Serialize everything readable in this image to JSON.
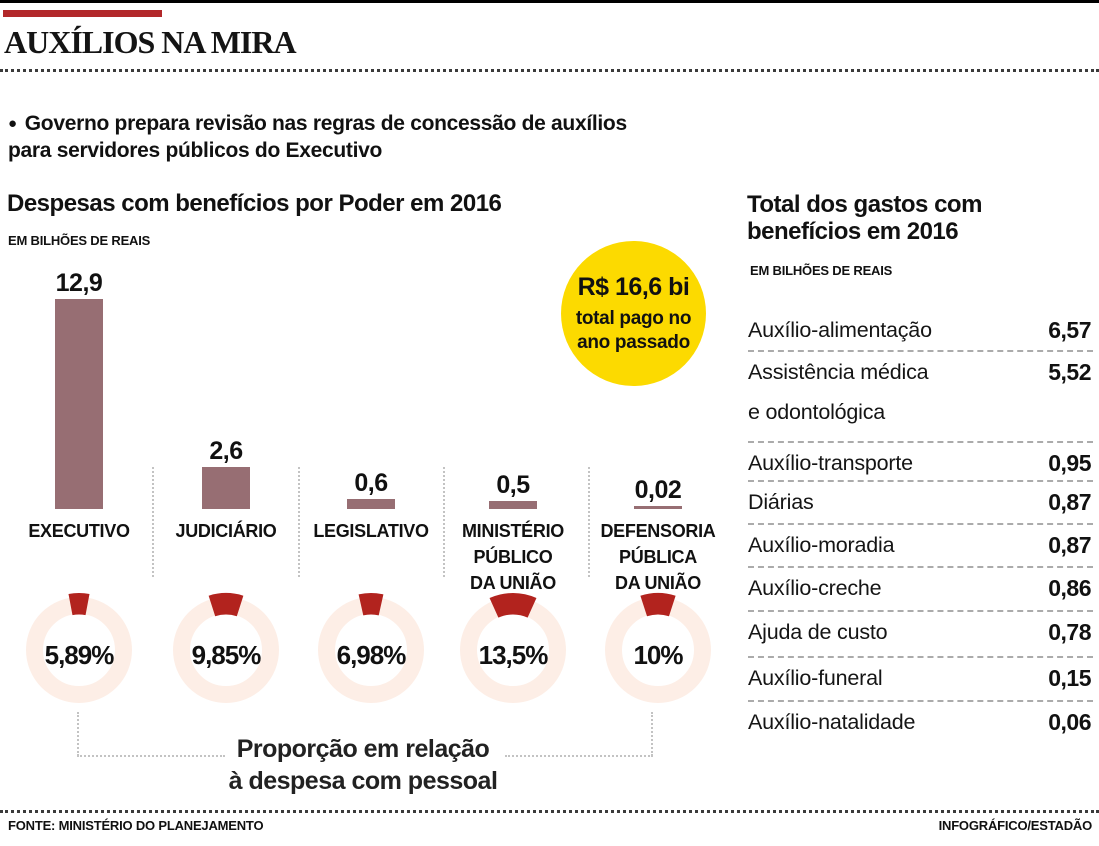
{
  "page": {
    "title": "AUXÍLIOS NA MIRA",
    "intro": {
      "bullet": "●",
      "line1": "Governo prepara revisão nas regras de concessão de auxílios",
      "line2": "para servidores públicos do Executivo"
    }
  },
  "colors": {
    "accent_red": "#b2282a",
    "bar_mauve": "#976e73",
    "wedge_red": "#b2231e",
    "ring_pink": "#fdeee6",
    "circle_yellow": "#fcda00"
  },
  "bar_chart": {
    "title": "Despesas com benefícios por Poder em 2016",
    "unit": "EM BILHÕES DE REAIS",
    "bars": [
      {
        "label_lines": [
          "EXECUTIVO"
        ],
        "value": 12.9,
        "value_label": "12,9"
      },
      {
        "label_lines": [
          "JUDICIÁRIO"
        ],
        "value": 2.6,
        "value_label": "2,6"
      },
      {
        "label_lines": [
          "LEGISLATIVO"
        ],
        "value": 0.6,
        "value_label": "0,6"
      },
      {
        "label_lines": [
          "MINISTÉRIO",
          "PÚBLICO",
          "DA UNIÃO"
        ],
        "value": 0.5,
        "value_label": "0,5"
      },
      {
        "label_lines": [
          "DEFENSORIA",
          "PÚBLICA",
          "DA UNIÃO"
        ],
        "value": 0.02,
        "value_label": "0,02"
      }
    ],
    "badge": {
      "value": "R$ 16,6 bi",
      "line1": "total pago no",
      "line2": "ano passado"
    }
  },
  "donut_chart": {
    "percents": [
      5.89,
      9.85,
      6.98,
      13.5,
      10
    ],
    "labels": [
      "5,89%",
      "9,85%",
      "6,98%",
      "13,5%",
      "10%"
    ],
    "caption_line1": "Proporção em relação",
    "caption_line2": "à despesa com pessoal"
  },
  "table": {
    "title_line1": "Total dos gastos com",
    "title_line2": "benefícios em 2016",
    "unit": "EM BILHÕES DE REAIS",
    "rows": [
      {
        "label_lines": [
          "Auxílio-alimentação"
        ],
        "value": "6,57"
      },
      {
        "label_lines": [
          "Assistência médica",
          "e odontológica"
        ],
        "value": "5,52"
      },
      {
        "label_lines": [
          "Auxílio-transporte"
        ],
        "value": "0,95"
      },
      {
        "label_lines": [
          "Diárias"
        ],
        "value": "0,87"
      },
      {
        "label_lines": [
          "Auxílio-moradia"
        ],
        "value": "0,87"
      },
      {
        "label_lines": [
          "Auxílio-creche"
        ],
        "value": "0,86"
      },
      {
        "label_lines": [
          "Ajuda de custo"
        ],
        "value": "0,78"
      },
      {
        "label_lines": [
          "Auxílio-funeral"
        ],
        "value": "0,15"
      },
      {
        "label_lines": [
          "Auxílio-natalidade"
        ],
        "value": "0,06"
      }
    ]
  },
  "footer": {
    "source_prefix": "FONTE:",
    "source": "MINISTÉRIO DO PLANEJAMENTO",
    "credit": "INFOGRÁFICO/ESTADÃO"
  },
  "chart_data": [
    {
      "type": "bar",
      "title": "Despesas com benefícios por Poder em 2016",
      "ylabel": "EM BILHÕES DE REAIS",
      "categories": [
        "EXECUTIVO",
        "JUDICIÁRIO",
        "LEGISLATIVO",
        "MINISTÉRIO PÚBLICO DA UNIÃO",
        "DEFENSORIA PÚBLICA DA UNIÃO"
      ],
      "values": [
        12.9,
        2.6,
        0.6,
        0.5,
        0.02
      ],
      "ylim": [
        0,
        13
      ],
      "annotation": "R$ 16,6 bi total pago no ano passado"
    },
    {
      "type": "pie",
      "title": "Proporção em relação à despesa com pessoal",
      "categories": [
        "EXECUTIVO",
        "JUDICIÁRIO",
        "LEGISLATIVO",
        "MINISTÉRIO PÚBLICO DA UNIÃO",
        "DEFENSORIA PÚBLICA DA UNIÃO"
      ],
      "values": [
        5.89,
        9.85,
        6.98,
        13.5,
        10
      ],
      "unit": "%"
    },
    {
      "type": "table",
      "title": "Total dos gastos com benefícios em 2016",
      "unit": "EM BILHÕES DE REAIS",
      "rows": [
        [
          "Auxílio-alimentação",
          6.57
        ],
        [
          "Assistência médica e odontológica",
          5.52
        ],
        [
          "Auxílio-transporte",
          0.95
        ],
        [
          "Diárias",
          0.87
        ],
        [
          "Auxílio-moradia",
          0.87
        ],
        [
          "Auxílio-creche",
          0.86
        ],
        [
          "Ajuda de custo",
          0.78
        ],
        [
          "Auxílio-funeral",
          0.15
        ],
        [
          "Auxílio-natalidade",
          0.06
        ]
      ]
    }
  ]
}
